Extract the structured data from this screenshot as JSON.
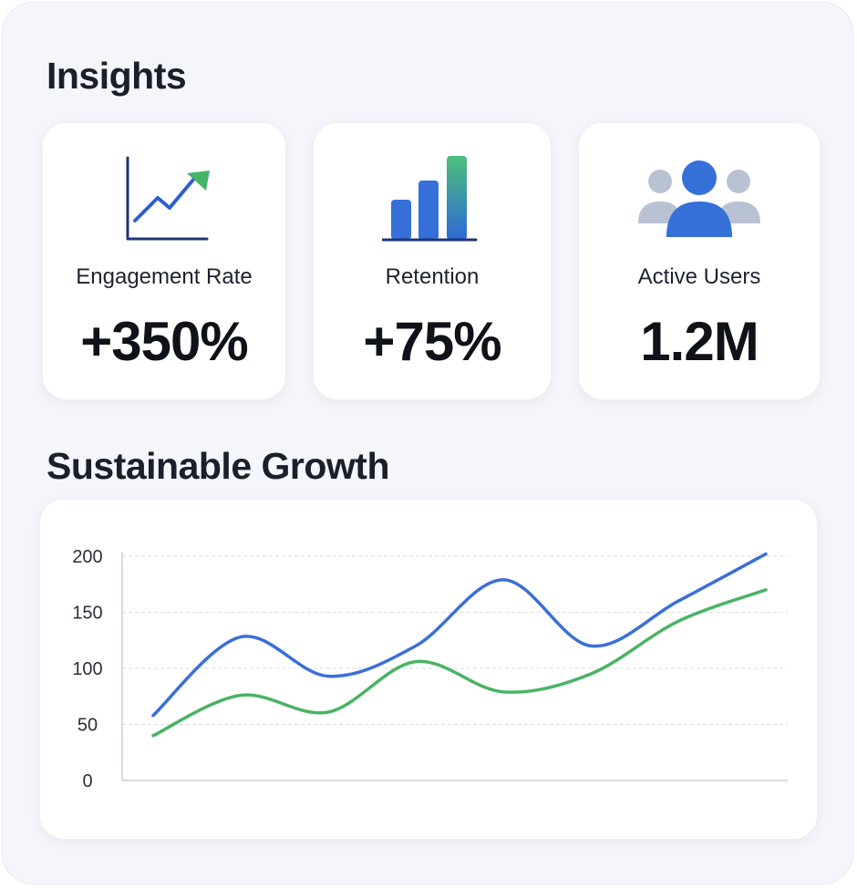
{
  "insights": {
    "title": "Insights",
    "cards": [
      {
        "label": "Engagement Rate",
        "value": "+350%",
        "icon": "trend-up-icon"
      },
      {
        "label": "Retention",
        "value": "+75%",
        "icon": "bar-chart-icon"
      },
      {
        "label": "Active Users",
        "value": "1.2M",
        "icon": "users-icon"
      }
    ]
  },
  "growth": {
    "title": "Sustainable Growth"
  },
  "colors": {
    "blue": "#3a6fd8",
    "green": "#4ab363",
    "icon_navy": "#1f3575"
  },
  "chart_data": {
    "type": "line",
    "title": "",
    "xlabel": "",
    "ylabel": "",
    "ylim": [
      0,
      200
    ],
    "yticks": [
      0,
      50,
      100,
      150,
      200
    ],
    "grid": true,
    "x": [
      0,
      1,
      2,
      3,
      4,
      5,
      6,
      7
    ],
    "series": [
      {
        "color": "#3a6fd8",
        "values": [
          58,
          128,
          93,
          120,
          179,
          120,
          160,
          202
        ]
      },
      {
        "color": "#4ab363",
        "values": [
          40,
          76,
          61,
          106,
          79,
          95,
          142,
          170
        ]
      }
    ]
  }
}
